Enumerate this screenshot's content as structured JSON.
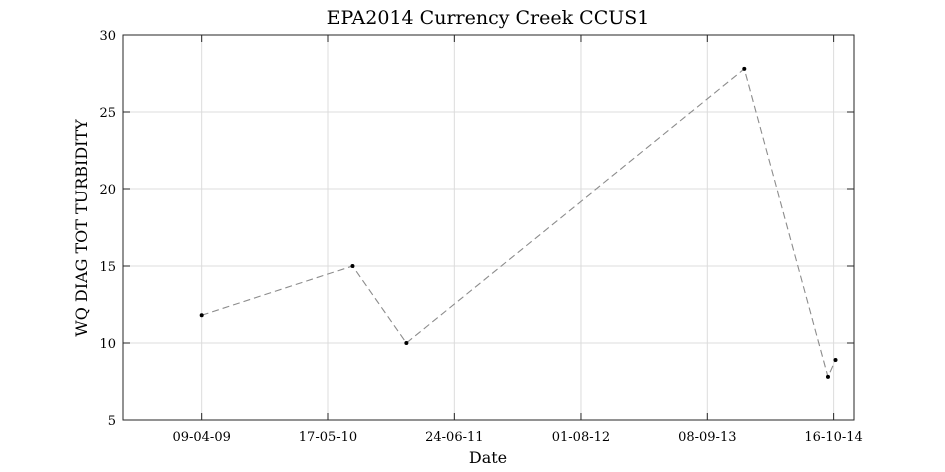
{
  "chart_data": {
    "type": "line",
    "title": "EPA2014 Currency Creek CCUS1",
    "xlabel": "Date",
    "ylabel": "WQ DIAG TOT TURBIDITY",
    "x_axis_type": "date",
    "xlim": [
      "2008-08-01",
      "2014-12-20"
    ],
    "ylim": [
      5,
      30
    ],
    "x_ticks": [
      {
        "value": "2009-04-09",
        "label": "09-04-09"
      },
      {
        "value": "2010-05-17",
        "label": "17-05-10"
      },
      {
        "value": "2011-06-24",
        "label": "24-06-11"
      },
      {
        "value": "2012-08-01",
        "label": "01-08-12"
      },
      {
        "value": "2013-09-08",
        "label": "08-09-13"
      },
      {
        "value": "2014-10-16",
        "label": "16-10-14"
      }
    ],
    "y_ticks": [
      5,
      10,
      15,
      20,
      25,
      30
    ],
    "grid": true,
    "line_style": "dashed",
    "line_color": "#8c8c8c",
    "marker_color": "#000000",
    "series": [
      {
        "x": [
          "2009-04-09",
          "2010-08-03",
          "2011-01-22",
          "2014-01-04",
          "2014-09-28",
          "2014-10-22"
        ],
        "values": [
          11.8,
          15.0,
          10.0,
          27.8,
          7.8,
          8.9
        ]
      }
    ]
  }
}
